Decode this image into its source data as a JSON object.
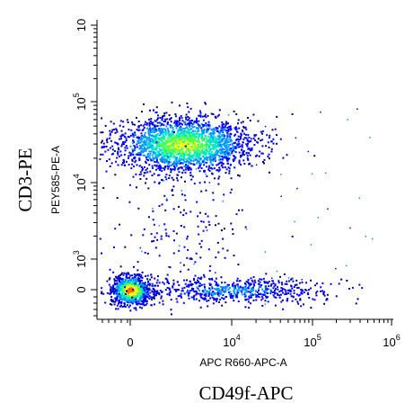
{
  "chart_data": {
    "type": "scatter",
    "plot_style": "density pseudocolor flow cytometry dot plot",
    "x_axis": {
      "label": "APC R660-APC-A",
      "outer_label": "CD49f-APC",
      "scale": "biexponential",
      "ticks": [
        {
          "base": "0",
          "exp": ""
        },
        {
          "base": "10",
          "exp": "4"
        },
        {
          "base": "10",
          "exp": "5"
        },
        {
          "base": "10",
          "exp": "6"
        }
      ]
    },
    "y_axis": {
      "label": "PEY585-PE-A",
      "outer_label": "CD3-PE",
      "scale": "biexponential",
      "ticks": [
        {
          "base": "0",
          "exp": ""
        },
        {
          "base": "10",
          "exp": "3"
        },
        {
          "base": "10",
          "exp": "4"
        },
        {
          "base": "10",
          "exp": "5"
        },
        {
          "base": "10",
          "exp": ""
        }
      ]
    },
    "populations": [
      {
        "name_shown": "",
        "x_center": 0,
        "y_center": 0,
        "density": "highest"
      },
      {
        "name_shown": "",
        "x_center": 2500,
        "y_center": 30000,
        "density": "high"
      },
      {
        "name_shown": "",
        "x_center": 10000,
        "y_center": 0,
        "density": "low"
      }
    ],
    "colors": [
      "#00008c",
      "#0000ff",
      "#0096ff",
      "#00e6c8",
      "#50ff50",
      "#ffff00",
      "#ff6400"
    ]
  }
}
